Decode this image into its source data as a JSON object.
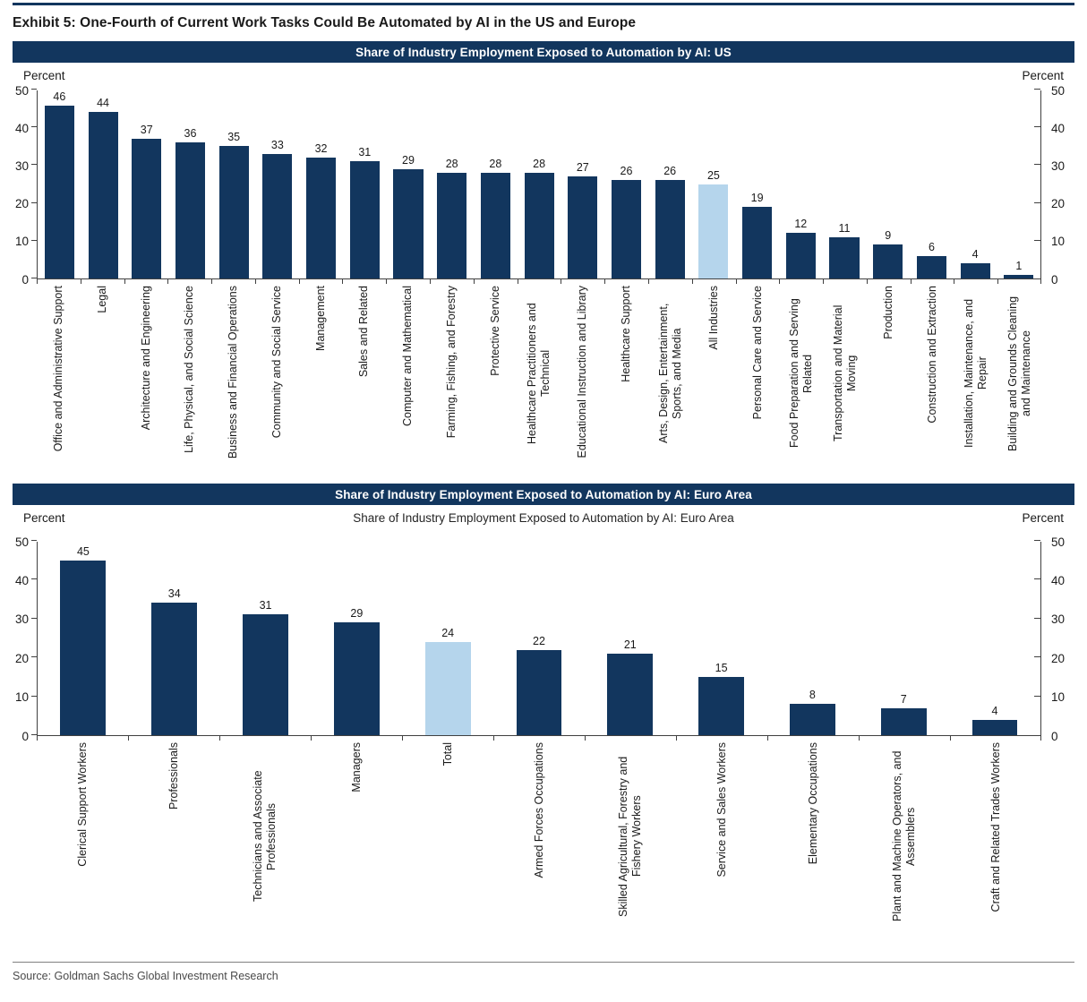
{
  "page": {
    "title": "Exhibit 5: One-Fourth of Current Work Tasks Could Be Automated by AI in the US and Europe",
    "source": "Source: Goldman Sachs Global Investment Research"
  },
  "colors": {
    "navy": "#12365E",
    "highlight_blue": "#B5D5EC",
    "header_bg": "#12365E",
    "header_text": "#FFFFFF",
    "axis": "#404040"
  },
  "chart_data": [
    {
      "type": "bar",
      "title": "Share of Industry Employment Exposed to Automation by AI: US",
      "ylabel_left": "Percent",
      "ylabel_right": "Percent",
      "ylim": [
        0,
        50
      ],
      "yticks": [
        0,
        10,
        20,
        30,
        40,
        50
      ],
      "grid": false,
      "categories": [
        "Office and Administrative Support",
        "Legal",
        "Architecture and Engineering",
        "Life, Physical, and Social Science",
        "Business and Financial Operations",
        "Community and Social Service",
        "Management",
        "Sales and Related",
        "Computer and Mathematical",
        "Farming, Fishing, and Forestry",
        "Protective Service",
        "Healthcare Practitioners and Technical",
        "Educational Instruction and Library",
        "Healthcare Support",
        "Arts, Design, Entertainment, Sports, and Media",
        "All Industries",
        "Personal Care and Service",
        "Food Preparation and Serving Related",
        "Transportation and Material Moving",
        "Production",
        "Construction and Extraction",
        "Installation, Maintenance, and Repair",
        "Building and Grounds Cleaning and Maintenance"
      ],
      "values": [
        46,
        44,
        37,
        36,
        35,
        33,
        32,
        31,
        29,
        28,
        28,
        28,
        27,
        26,
        26,
        25,
        19,
        12,
        11,
        9,
        6,
        4,
        1
      ],
      "highlight_index": 15,
      "highlight_category": "All Industries"
    },
    {
      "type": "bar",
      "title": "Share of Industry Employment Exposed to Automation by AI: Euro Area",
      "subtitle": "Share of Industry Employment Exposed to Automation by AI: Euro Area",
      "ylabel_left": "Percent",
      "ylabel_right": "Percent",
      "ylim": [
        0,
        50
      ],
      "yticks": [
        0,
        10,
        20,
        30,
        40,
        50
      ],
      "grid": false,
      "categories": [
        "Clerical Support Workers",
        "Professionals",
        "Technicians and Associate Professionals",
        "Managers",
        "Total",
        "Armed Forces Occupations",
        "Skilled Agricultural, Forestry and Fishery Workers",
        "Service and Sales Workers",
        "Elementary Occupations",
        "Plant and Machine Operators, and Assemblers",
        "Craft and Related Trades Workers"
      ],
      "values": [
        45,
        34,
        31,
        29,
        24,
        22,
        21,
        15,
        8,
        7,
        4
      ],
      "highlight_index": 4,
      "highlight_category": "Total"
    }
  ]
}
